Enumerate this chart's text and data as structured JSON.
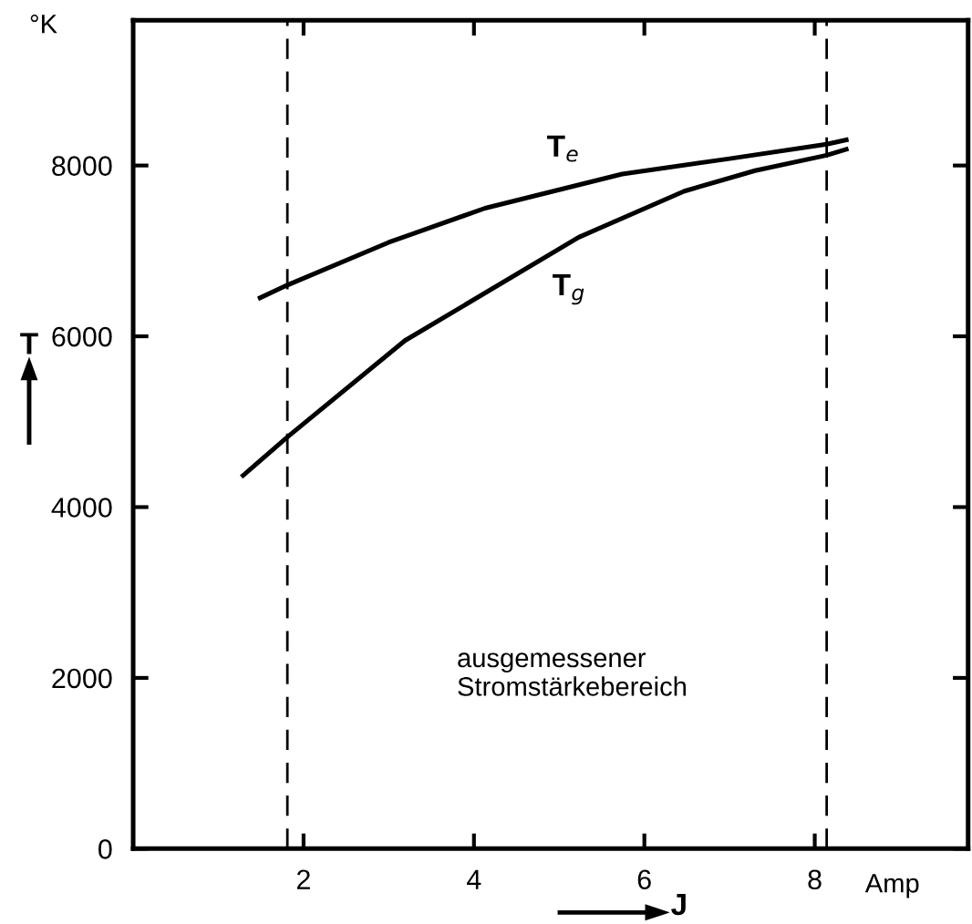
{
  "chart_data": {
    "type": "line",
    "xlabel": "J",
    "ylabel": "T",
    "xlim": [
      0,
      9.8
    ],
    "ylim": [
      0,
      9700
    ],
    "xticks": [
      2,
      4,
      6,
      8
    ],
    "yticks": [
      {
        "value": 0,
        "label": "0"
      },
      2000,
      4000,
      6000,
      8000
    ],
    "series": [
      {
        "name": "T$_{e}$",
        "color": "#000000",
        "x": [
          1.49,
          1.81,
          3.0,
          4.13,
          5.74,
          7.0,
          8.14,
          8.37
        ],
        "values": [
          6450,
          6600,
          7100,
          7500,
          7900,
          8080,
          8250,
          8300
        ]
      },
      {
        "name": "T$_{g}$",
        "color": "#000000",
        "x": [
          1.29,
          1.81,
          3.19,
          5.23,
          6.47,
          7.3,
          8.14,
          8.37
        ],
        "values": [
          4370,
          4820,
          5950,
          7160,
          7700,
          7940,
          8120,
          8190
        ]
      }
    ],
    "ref_lines": [
      {
        "axis": "x",
        "value": 1.81,
        "line_style": "dashed",
        "color": "#000000"
      },
      {
        "axis": "x",
        "value": 8.14,
        "line_style": "dashed",
        "color": "#000000"
      }
    ],
    "annotations": [
      "°K",
      "Amp",
      "ausgemessener\nStromstärkebereich"
    ],
    "grid": false,
    "legend": false,
    "marker": "none",
    "line_style": "solid"
  }
}
